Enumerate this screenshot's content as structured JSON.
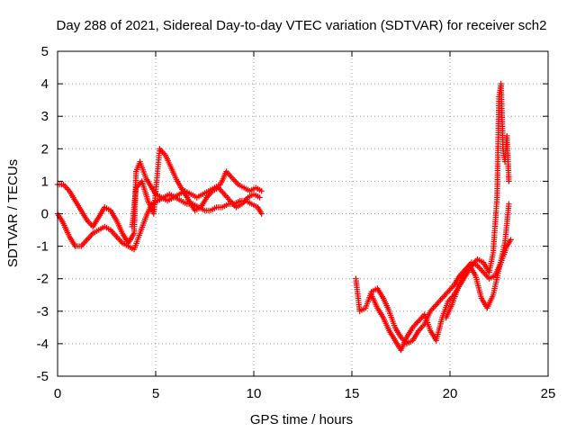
{
  "chart_data": {
    "type": "scatter",
    "title": "Day 288 of 2021, Sidereal Day-to-day VTEC variation (SDTVAR) for receiver sch2",
    "xlabel": "GPS time / hours",
    "ylabel": "SDTVAR / TECUs",
    "xlim": [
      0,
      25
    ],
    "ylim": [
      -5,
      5
    ],
    "xticks": [
      0,
      5,
      10,
      15,
      20,
      25
    ],
    "yticks": [
      -5,
      -4,
      -3,
      -2,
      -1,
      0,
      1,
      2,
      3,
      4,
      5
    ],
    "x_tick_labels": [
      "0",
      "5",
      "10",
      "15",
      "20",
      "25"
    ],
    "y_tick_labels": [
      "-5",
      "-4",
      "-3",
      "-2",
      "-1",
      "0",
      "1",
      "2",
      "3",
      "4",
      "5"
    ],
    "grid": true,
    "legend": "none",
    "marker": "+",
    "color": "#ff0000",
    "series": [
      {
        "name": "segment-a",
        "x": [
          0.0,
          0.3,
          0.6,
          0.9,
          1.2,
          1.5,
          1.8,
          2.1,
          2.4,
          2.7,
          3.0,
          3.3,
          3.6,
          3.9,
          4.2,
          4.5,
          4.8,
          5.1,
          5.4,
          5.7,
          6.0,
          6.3,
          6.6,
          6.9,
          7.2,
          7.5,
          7.8,
          8.1,
          8.4,
          8.7,
          9.0,
          9.3,
          9.6,
          9.9,
          10.2,
          10.4
        ],
        "y": [
          0.0,
          -0.3,
          -0.7,
          -1.0,
          -1.0,
          -0.8,
          -0.6,
          -0.5,
          -0.4,
          -0.5,
          -0.7,
          -0.9,
          -1.0,
          -1.1,
          -0.6,
          -0.1,
          0.3,
          0.4,
          0.5,
          0.6,
          0.5,
          0.4,
          0.3,
          0.3,
          0.2,
          0.1,
          0.1,
          0.2,
          0.2,
          0.3,
          0.3,
          0.4,
          0.4,
          0.3,
          0.2,
          0.0
        ]
      },
      {
        "name": "segment-b",
        "x": [
          0.0,
          0.3,
          0.6,
          0.9,
          1.2,
          1.5,
          1.8,
          2.1,
          2.4,
          2.7,
          3.0,
          3.3,
          3.6,
          3.9,
          4.0,
          4.2,
          4.5,
          4.8,
          5.0,
          5.3,
          5.6,
          5.9,
          6.2,
          6.5,
          6.8,
          7.1,
          7.4,
          7.7,
          8.0,
          8.3,
          8.6,
          8.9,
          9.2,
          9.5,
          9.8,
          10.1,
          10.4
        ],
        "y": [
          0.9,
          0.9,
          0.7,
          0.4,
          0.1,
          -0.2,
          -0.4,
          -0.1,
          0.2,
          0.1,
          -0.2,
          -0.6,
          -0.9,
          -0.6,
          1.3,
          1.6,
          1.1,
          0.8,
          0.6,
          0.5,
          0.4,
          0.5,
          0.6,
          0.7,
          0.6,
          0.5,
          0.6,
          0.7,
          0.8,
          0.9,
          1.3,
          1.1,
          0.9,
          0.8,
          0.7,
          0.8,
          0.7
        ]
      },
      {
        "name": "segment-c",
        "x": [
          3.8,
          4.0,
          4.3,
          4.6,
          4.9,
          5.2,
          5.5,
          5.8,
          6.1,
          6.4,
          6.7,
          7.0,
          7.3,
          7.6,
          7.9,
          8.2,
          8.5,
          8.8,
          9.1,
          9.4,
          9.7,
          10.0,
          10.3
        ],
        "y": [
          -0.4,
          0.8,
          1.0,
          0.4,
          0.0,
          2.0,
          1.8,
          1.4,
          1.0,
          0.7,
          0.4,
          0.1,
          0.2,
          0.5,
          0.7,
          0.8,
          0.6,
          0.4,
          0.2,
          0.3,
          0.5,
          0.6,
          0.5
        ]
      },
      {
        "name": "segment-d",
        "x": [
          15.2,
          15.4,
          15.7,
          16.0,
          16.3,
          16.6,
          16.9,
          17.2,
          17.5,
          17.8,
          18.1,
          18.4,
          18.7,
          19.0,
          19.3,
          19.6,
          19.9,
          20.2,
          20.5,
          20.8,
          21.1,
          21.4,
          21.7,
          22.0,
          22.3,
          22.6,
          22.9,
          23.1
        ],
        "y": [
          -2.0,
          -3.0,
          -2.9,
          -2.4,
          -2.3,
          -2.6,
          -3.0,
          -3.5,
          -3.8,
          -4.0,
          -3.9,
          -3.6,
          -3.4,
          -3.0,
          -2.8,
          -2.6,
          -2.4,
          -2.2,
          -1.9,
          -1.7,
          -1.5,
          -1.6,
          -1.8,
          -2.0,
          -1.9,
          -1.5,
          -1.0,
          -0.8
        ]
      },
      {
        "name": "segment-e",
        "x": [
          16.0,
          16.3,
          16.6,
          16.9,
          17.2,
          17.5,
          17.8,
          18.1,
          18.4,
          18.7,
          19.0,
          19.3,
          19.6,
          19.9,
          20.2,
          20.5,
          20.8,
          21.1,
          21.4,
          21.7,
          22.0,
          22.2,
          22.4,
          22.5,
          22.6,
          22.7,
          22.8,
          22.9,
          23.0
        ],
        "y": [
          -2.5,
          -2.9,
          -3.2,
          -3.6,
          -3.9,
          -4.2,
          -3.8,
          -3.5,
          -3.3,
          -3.1,
          -3.6,
          -3.9,
          -3.2,
          -2.7,
          -2.5,
          -2.2,
          -1.9,
          -1.6,
          -1.4,
          -1.5,
          -1.8,
          -1.2,
          0.5,
          3.6,
          4.0,
          2.0,
          1.6,
          2.4,
          1.0
        ]
      },
      {
        "name": "segment-f",
        "x": [
          19.8,
          20.1,
          20.4,
          20.7,
          21.0,
          21.3,
          21.6,
          21.9,
          22.2,
          22.5,
          22.8,
          23.0
        ],
        "y": [
          -3.2,
          -2.8,
          -2.3,
          -1.8,
          -1.6,
          -1.9,
          -2.6,
          -2.9,
          -2.5,
          -1.7,
          -0.9,
          0.3
        ]
      }
    ]
  }
}
